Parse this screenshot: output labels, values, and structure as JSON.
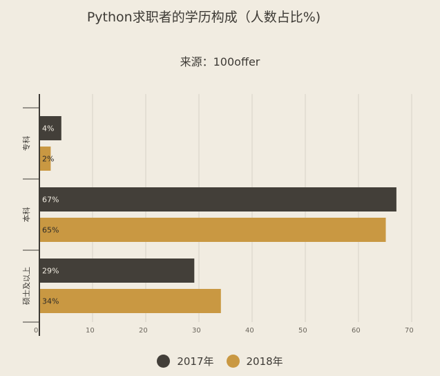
{
  "title": "Python求职者的学历构成（人数占比%)",
  "subtitle": "来源：100offer",
  "colors": {
    "2017": "#433f39",
    "2018": "#c99842",
    "background": "#f1ece1",
    "grid": "#d8d2c6",
    "axis": "#3d3a35"
  },
  "chart_data": {
    "type": "bar",
    "orientation": "horizontal",
    "categories": [
      "专科",
      "本科",
      "硕士及以上"
    ],
    "series": [
      {
        "name": "2017年",
        "values": [
          4,
          67,
          29
        ],
        "labels": [
          "4%",
          "67%",
          "29%"
        ]
      },
      {
        "name": "2018年",
        "values": [
          2,
          65,
          34
        ],
        "labels": [
          "2%",
          "65%",
          "34%"
        ]
      }
    ],
    "xlim": [
      0,
      70
    ],
    "xticks": [
      "0",
      "10",
      "20",
      "30",
      "40",
      "50",
      "60",
      "70"
    ],
    "grid": true,
    "legend_position": "bottom"
  }
}
